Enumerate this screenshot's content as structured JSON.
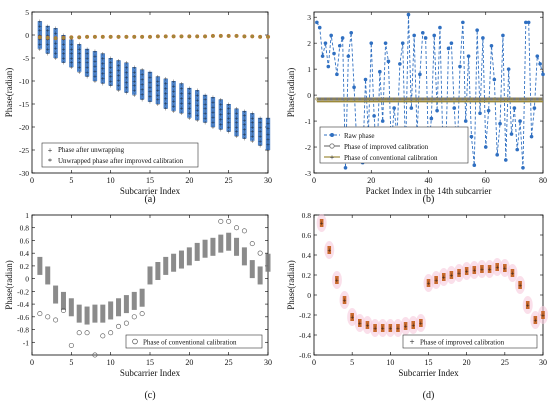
{
  "figure": {
    "panels": [
      "a",
      "b",
      "c",
      "d"
    ]
  },
  "colors": {
    "blue": "#2f6fc1",
    "magenta": "#e0208a",
    "olive": "#9c8a3b",
    "gray": "#777777",
    "axis": "#000000",
    "grid": "#dddddd",
    "pink_marker": "#e0669c",
    "orange_marker": "#c8692c"
  },
  "chart_data": [
    {
      "id": "a",
      "type": "scatter",
      "caption": "(a)",
      "xlabel": "Subcarrier Index",
      "ylabel": "Phase(radian)",
      "xlim": [
        0,
        30
      ],
      "ylim": [
        -30,
        5
      ],
      "xticks": [
        0,
        5,
        10,
        15,
        20,
        25,
        30
      ],
      "yticks": [
        5,
        0,
        -5,
        -10,
        -15,
        -20,
        -25,
        -30
      ],
      "xtick_labels": [
        "0",
        "5",
        "10",
        "15",
        "20",
        "25",
        "30"
      ],
      "ytick_labels": [
        "5",
        "0",
        "-5",
        "-10",
        "-15",
        "-20",
        "-25",
        "-30"
      ],
      "grid": false,
      "legend": [
        "Phase after unwrapping",
        "Unwrapped phase after improved calibration"
      ],
      "legend_position": "bottom-left",
      "series": [
        {
          "name": "Phase after unwrapping",
          "x": [
            1,
            2,
            3,
            4,
            5,
            6,
            7,
            8,
            9,
            10,
            11,
            12,
            13,
            14,
            15,
            16,
            17,
            18,
            19,
            20,
            21,
            22,
            23,
            24,
            25,
            26,
            27,
            28,
            29,
            30
          ],
          "y_min": [
            -3,
            -4,
            -5,
            -6,
            -7,
            -8,
            -9,
            -10,
            -10.5,
            -11,
            -12,
            -12.5,
            -13,
            -14,
            -14.5,
            -15,
            -16,
            -16.5,
            -17,
            -18,
            -18.5,
            -19,
            -20,
            -20.5,
            -21,
            -22,
            -22.5,
            -23,
            -24,
            -25
          ],
          "y_max": [
            3,
            2,
            1.5,
            0,
            -1,
            -2,
            -3,
            -3.5,
            -4,
            -5,
            -5.5,
            -6,
            -7,
            -7.5,
            -8,
            -9,
            -9.5,
            -10,
            -10.5,
            -11.5,
            -12,
            -13,
            -13.5,
            -14,
            -15,
            -16,
            -16.5,
            -17,
            -18,
            -18
          ]
        },
        {
          "name": "Unwrapped phase after improved calibration",
          "x": [
            1,
            2,
            3,
            4,
            5,
            6,
            7,
            8,
            9,
            10,
            11,
            12,
            13,
            14,
            15,
            16,
            17,
            18,
            19,
            20,
            21,
            22,
            23,
            24,
            25,
            26,
            27,
            28,
            29,
            30
          ],
          "y": [
            -0.5,
            -0.6,
            -0.7,
            -0.6,
            -0.5,
            -0.5,
            -0.4,
            -0.4,
            -0.4,
            -0.4,
            -0.4,
            -0.4,
            -0.4,
            -0.4,
            -0.4,
            -0.3,
            -0.3,
            -0.3,
            -0.3,
            -0.3,
            -0.3,
            -0.3,
            -0.2,
            -0.2,
            -0.2,
            -0.2,
            -0.3,
            -0.3,
            -0.4,
            -0.4
          ]
        }
      ]
    },
    {
      "id": "b",
      "type": "line",
      "caption": "(b)",
      "xlabel": "Packet Index in the 14th subcarrier",
      "ylabel": "Phase(radian)",
      "xlim": [
        0,
        80
      ],
      "ylim": [
        -3,
        3.2
      ],
      "xticks": [
        0,
        20,
        40,
        60,
        80
      ],
      "yticks": [
        3,
        2,
        1,
        0,
        -1,
        -2,
        -3
      ],
      "xtick_labels": [
        "0",
        "20",
        "40",
        "60",
        "80"
      ],
      "ytick_labels": [
        "3",
        "2",
        "1",
        "0",
        "-1",
        "-2",
        "-3"
      ],
      "grid": false,
      "legend": [
        "Raw phase",
        "Phase of improved calibration",
        "Phase of conventional calibration"
      ],
      "legend_position": "bottom-left",
      "series": [
        {
          "name": "Raw phase",
          "x": [
            1,
            2,
            3,
            4,
            5,
            6,
            7,
            8,
            9,
            10,
            11,
            12,
            13,
            14,
            15,
            16,
            17,
            18,
            19,
            20,
            21,
            22,
            23,
            24,
            25,
            26,
            27,
            28,
            29,
            30,
            31,
            32,
            33,
            34,
            35,
            36,
            37,
            38,
            39,
            40,
            41,
            42,
            43,
            44,
            45,
            46,
            47,
            48,
            49,
            50,
            51,
            52,
            53,
            54,
            55,
            56,
            57,
            58,
            59,
            60,
            61,
            62,
            63,
            64,
            65,
            66,
            67,
            68,
            69,
            70,
            71,
            72,
            73,
            74,
            75,
            76,
            77,
            78,
            79,
            80
          ],
          "y": [
            2.8,
            2.6,
            1.5,
            2.0,
            1.1,
            2.3,
            1.6,
            0.8,
            1.9,
            2.2,
            -2.8,
            1.5,
            2.4,
            0.3,
            -2.0,
            -1.8,
            -2.6,
            0.6,
            -1.5,
            2.0,
            -0.8,
            -2.5,
            0.9,
            -1.0,
            2.0,
            1.3,
            -2.0,
            -0.5,
            -1.6,
            1.2,
            2.0,
            -2.3,
            3.1,
            -0.5,
            2.3,
            -1.5,
            0.8,
            2.4,
            2.2,
            -2.2,
            -0.9,
            2.3,
            -0.6,
            2.6,
            -1.8,
            -2.3,
            1.8,
            2.0,
            -0.5,
            -2.4,
            1.1,
            2.8,
            -1.0,
            1.5,
            -1.6,
            -2.7,
            2.5,
            -0.7,
            2.2,
            -2.0,
            -0.6,
            1.9,
            0.6,
            -2.3,
            -1.1,
            2.3,
            -2.5,
            1.0,
            -1.5,
            -0.5,
            -2.1,
            -1.0,
            -2.8,
            2.8,
            2.8,
            -1.6,
            -0.5,
            1.5,
            1.2,
            0.8
          ]
        },
        {
          "name": "Phase of improved calibration",
          "x": [
            1,
            80
          ],
          "y": [
            -0.15,
            -0.15
          ]
        },
        {
          "name": "Phase of conventional calibration",
          "x": [
            1,
            80
          ],
          "y": [
            -0.25,
            -0.25
          ]
        }
      ]
    },
    {
      "id": "c",
      "type": "scatter",
      "caption": "(c)",
      "xlabel": "Subcarrier Index",
      "ylabel": "Phase(radian)",
      "xlim": [
        0,
        30
      ],
      "ylim": [
        -1.2,
        1
      ],
      "xticks": [
        0,
        5,
        10,
        15,
        20,
        25,
        30
      ],
      "yticks": [
        1,
        0.8,
        0.6,
        0.4,
        0.2,
        0,
        -0.2,
        -0.4,
        -0.6,
        -0.8,
        -1
      ],
      "xtick_labels": [
        "0",
        "5",
        "10",
        "15",
        "20",
        "25",
        "30"
      ],
      "ytick_labels": [
        "1",
        "0.8",
        "0.6",
        "0.4",
        "0.2",
        "0",
        "-0.2",
        "-0.4",
        "-0.6",
        "-0.8",
        "-1"
      ],
      "grid": false,
      "legend": [
        "Phase of conventional calibration"
      ],
      "legend_position": "bottom-right",
      "series": [
        {
          "name": "Phase of conventional calibration",
          "x": [
            1,
            2,
            3,
            4,
            5,
            6,
            7,
            8,
            9,
            10,
            11,
            12,
            13,
            14,
            15,
            16,
            17,
            18,
            19,
            20,
            21,
            22,
            23,
            24,
            25,
            26,
            27,
            28,
            29,
            30
          ],
          "y": [
            0.2,
            0.05,
            -0.25,
            -0.35,
            -0.45,
            -0.55,
            -0.58,
            -0.55,
            -0.55,
            -0.5,
            -0.45,
            -0.4,
            -0.35,
            -0.3,
            0.05,
            0.12,
            0.2,
            0.25,
            0.3,
            0.35,
            0.42,
            0.47,
            0.5,
            0.55,
            0.58,
            0.5,
            0.35,
            0.15,
            0.05,
            0.25
          ],
          "outliers_x": [
            1,
            2,
            3,
            4,
            5,
            6,
            7,
            8,
            9,
            10,
            11,
            12,
            13,
            14,
            24,
            25,
            26,
            27,
            28,
            29
          ],
          "outliers_y": [
            -0.55,
            -0.6,
            -0.65,
            -0.5,
            -1.05,
            -0.85,
            -0.85,
            -1.2,
            -0.9,
            -0.85,
            -0.75,
            -0.7,
            -0.6,
            -0.55,
            0.9,
            0.9,
            0.8,
            0.75,
            0.55,
            0.4
          ]
        }
      ]
    },
    {
      "id": "d",
      "type": "scatter",
      "caption": "(d)",
      "xlabel": "Subcarrier Index",
      "ylabel": "Phase(radian)",
      "xlim": [
        0,
        30
      ],
      "ylim": [
        -0.6,
        0.8
      ],
      "xticks": [
        0,
        5,
        10,
        15,
        20,
        25,
        30
      ],
      "yticks": [
        0.8,
        0.6,
        0.4,
        0.2,
        0,
        -0.2,
        -0.4,
        -0.6
      ],
      "xtick_labels": [
        "0",
        "5",
        "10",
        "15",
        "20",
        "25",
        "30"
      ],
      "ytick_labels": [
        "0.8",
        "0.6",
        "0.4",
        "0.2",
        "0",
        "-0.2",
        "-0.4",
        "-0.6"
      ],
      "grid": false,
      "legend": [
        "Phase of improved calibration"
      ],
      "legend_position": "bottom-right",
      "series": [
        {
          "name": "Phase of improved calibration",
          "x": [
            1,
            2,
            3,
            4,
            5,
            6,
            7,
            8,
            9,
            10,
            11,
            12,
            13,
            14,
            15,
            16,
            17,
            18,
            19,
            20,
            21,
            22,
            23,
            24,
            25,
            26,
            27,
            28,
            29,
            30
          ],
          "y": [
            0.72,
            0.45,
            0.15,
            -0.05,
            -0.22,
            -0.28,
            -0.3,
            -0.33,
            -0.33,
            -0.33,
            -0.33,
            -0.31,
            -0.3,
            -0.28,
            0.12,
            0.15,
            0.18,
            0.2,
            0.22,
            0.24,
            0.25,
            0.26,
            0.26,
            0.28,
            0.27,
            0.22,
            0.1,
            -0.1,
            -0.25,
            -0.2
          ]
        }
      ]
    }
  ]
}
